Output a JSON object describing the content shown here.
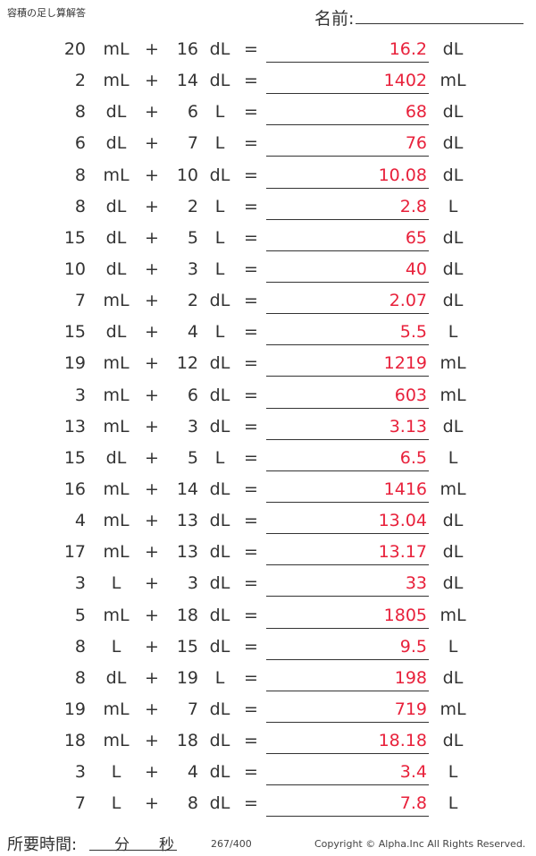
{
  "header": {
    "title": "容積の足し算解答",
    "name_label": "名前:"
  },
  "rows": [
    {
      "a": "20",
      "u1": "mL",
      "op": "+",
      "b": "16",
      "u2": "dL",
      "eq": "=",
      "ans": "16.2",
      "u3": "dL"
    },
    {
      "a": "2",
      "u1": "mL",
      "op": "+",
      "b": "14",
      "u2": "dL",
      "eq": "=",
      "ans": "1402",
      "u3": "mL"
    },
    {
      "a": "8",
      "u1": "dL",
      "op": "+",
      "b": "6",
      "u2": "L",
      "eq": "=",
      "ans": "68",
      "u3": "dL"
    },
    {
      "a": "6",
      "u1": "dL",
      "op": "+",
      "b": "7",
      "u2": "L",
      "eq": "=",
      "ans": "76",
      "u3": "dL"
    },
    {
      "a": "8",
      "u1": "mL",
      "op": "+",
      "b": "10",
      "u2": "dL",
      "eq": "=",
      "ans": "10.08",
      "u3": "dL"
    },
    {
      "a": "8",
      "u1": "dL",
      "op": "+",
      "b": "2",
      "u2": "L",
      "eq": "=",
      "ans": "2.8",
      "u3": "L"
    },
    {
      "a": "15",
      "u1": "dL",
      "op": "+",
      "b": "5",
      "u2": "L",
      "eq": "=",
      "ans": "65",
      "u3": "dL"
    },
    {
      "a": "10",
      "u1": "dL",
      "op": "+",
      "b": "3",
      "u2": "L",
      "eq": "=",
      "ans": "40",
      "u3": "dL"
    },
    {
      "a": "7",
      "u1": "mL",
      "op": "+",
      "b": "2",
      "u2": "dL",
      "eq": "=",
      "ans": "2.07",
      "u3": "dL"
    },
    {
      "a": "15",
      "u1": "dL",
      "op": "+",
      "b": "4",
      "u2": "L",
      "eq": "=",
      "ans": "5.5",
      "u3": "L"
    },
    {
      "a": "19",
      "u1": "mL",
      "op": "+",
      "b": "12",
      "u2": "dL",
      "eq": "=",
      "ans": "1219",
      "u3": "mL"
    },
    {
      "a": "3",
      "u1": "mL",
      "op": "+",
      "b": "6",
      "u2": "dL",
      "eq": "=",
      "ans": "603",
      "u3": "mL"
    },
    {
      "a": "13",
      "u1": "mL",
      "op": "+",
      "b": "3",
      "u2": "dL",
      "eq": "=",
      "ans": "3.13",
      "u3": "dL"
    },
    {
      "a": "15",
      "u1": "dL",
      "op": "+",
      "b": "5",
      "u2": "L",
      "eq": "=",
      "ans": "6.5",
      "u3": "L"
    },
    {
      "a": "16",
      "u1": "mL",
      "op": "+",
      "b": "14",
      "u2": "dL",
      "eq": "=",
      "ans": "1416",
      "u3": "mL"
    },
    {
      "a": "4",
      "u1": "mL",
      "op": "+",
      "b": "13",
      "u2": "dL",
      "eq": "=",
      "ans": "13.04",
      "u3": "dL"
    },
    {
      "a": "17",
      "u1": "mL",
      "op": "+",
      "b": "13",
      "u2": "dL",
      "eq": "=",
      "ans": "13.17",
      "u3": "dL"
    },
    {
      "a": "3",
      "u1": "L",
      "op": "+",
      "b": "3",
      "u2": "dL",
      "eq": "=",
      "ans": "33",
      "u3": "dL"
    },
    {
      "a": "5",
      "u1": "mL",
      "op": "+",
      "b": "18",
      "u2": "dL",
      "eq": "=",
      "ans": "1805",
      "u3": "mL"
    },
    {
      "a": "8",
      "u1": "L",
      "op": "+",
      "b": "15",
      "u2": "dL",
      "eq": "=",
      "ans": "9.5",
      "u3": "L"
    },
    {
      "a": "8",
      "u1": "dL",
      "op": "+",
      "b": "19",
      "u2": "L",
      "eq": "=",
      "ans": "198",
      "u3": "dL"
    },
    {
      "a": "19",
      "u1": "mL",
      "op": "+",
      "b": "7",
      "u2": "dL",
      "eq": "=",
      "ans": "719",
      "u3": "mL"
    },
    {
      "a": "18",
      "u1": "mL",
      "op": "+",
      "b": "18",
      "u2": "dL",
      "eq": "=",
      "ans": "18.18",
      "u3": "dL"
    },
    {
      "a": "3",
      "u1": "L",
      "op": "+",
      "b": "4",
      "u2": "dL",
      "eq": "=",
      "ans": "3.4",
      "u3": "L"
    },
    {
      "a": "7",
      "u1": "L",
      "op": "+",
      "b": "8",
      "u2": "dL",
      "eq": "=",
      "ans": "7.8",
      "u3": "L"
    }
  ],
  "footer": {
    "time_label": "所要時間:",
    "minutes": "分",
    "seconds": "秒",
    "page": "267/400",
    "copyright": "Copyright © Alpha.Inc All Rights Reserved."
  },
  "colors": {
    "answer": "#e8213b",
    "text": "#333333"
  }
}
